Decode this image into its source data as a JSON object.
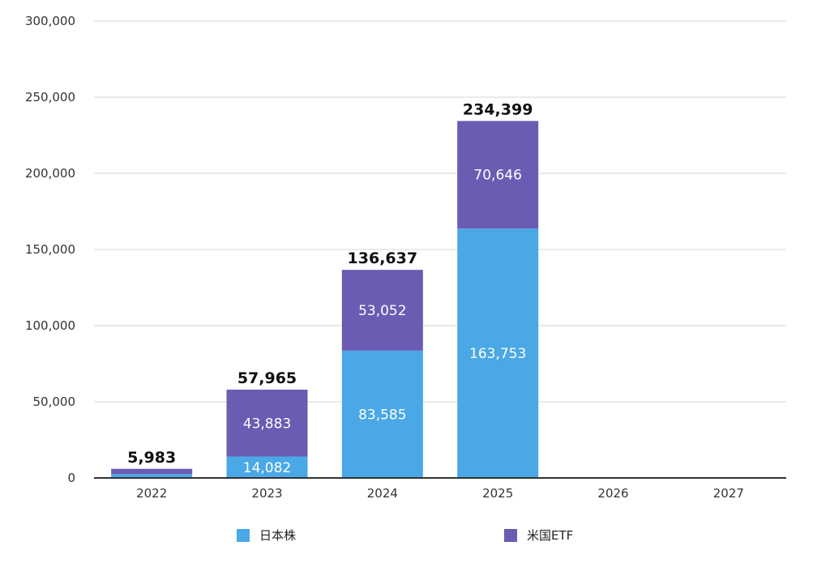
{
  "chart_data": {
    "type": "bar",
    "stacked": true,
    "title": "",
    "xlabel": "",
    "ylabel": "",
    "categories": [
      "2022",
      "2023",
      "2024",
      "2025",
      "2026",
      "2027"
    ],
    "series": [
      {
        "name": "日本株",
        "color": "#4aa8e6",
        "values": [
          2500,
          14082,
          83585,
          163753,
          null,
          null
        ],
        "labels": [
          "",
          "14,082",
          "83,585",
          "163,753",
          "",
          ""
        ]
      },
      {
        "name": "米国ETF",
        "color": "#6b5bb3",
        "values": [
          3483,
          43883,
          53052,
          70646,
          null,
          null
        ],
        "labels": [
          "",
          "43,883",
          "53,052",
          "70,646",
          "",
          ""
        ]
      }
    ],
    "totals": [
      5983,
      57965,
      136637,
      234399,
      null,
      null
    ],
    "total_labels": [
      "5,983",
      "57,965",
      "136,637",
      "234,399",
      "",
      ""
    ],
    "ylim": [
      0,
      300000
    ],
    "yticks": [
      0,
      50000,
      100000,
      150000,
      200000,
      250000,
      300000
    ],
    "ytick_labels": [
      "0",
      "50,000",
      "100,000",
      "150,000",
      "200,000",
      "250,000",
      "300,000"
    ],
    "grid": true,
    "legend_position": "bottom"
  },
  "legend": {
    "items": [
      {
        "label": "日本株",
        "color": "#4aa8e6"
      },
      {
        "label": "米国ETF",
        "color": "#6b5bb3"
      }
    ]
  }
}
